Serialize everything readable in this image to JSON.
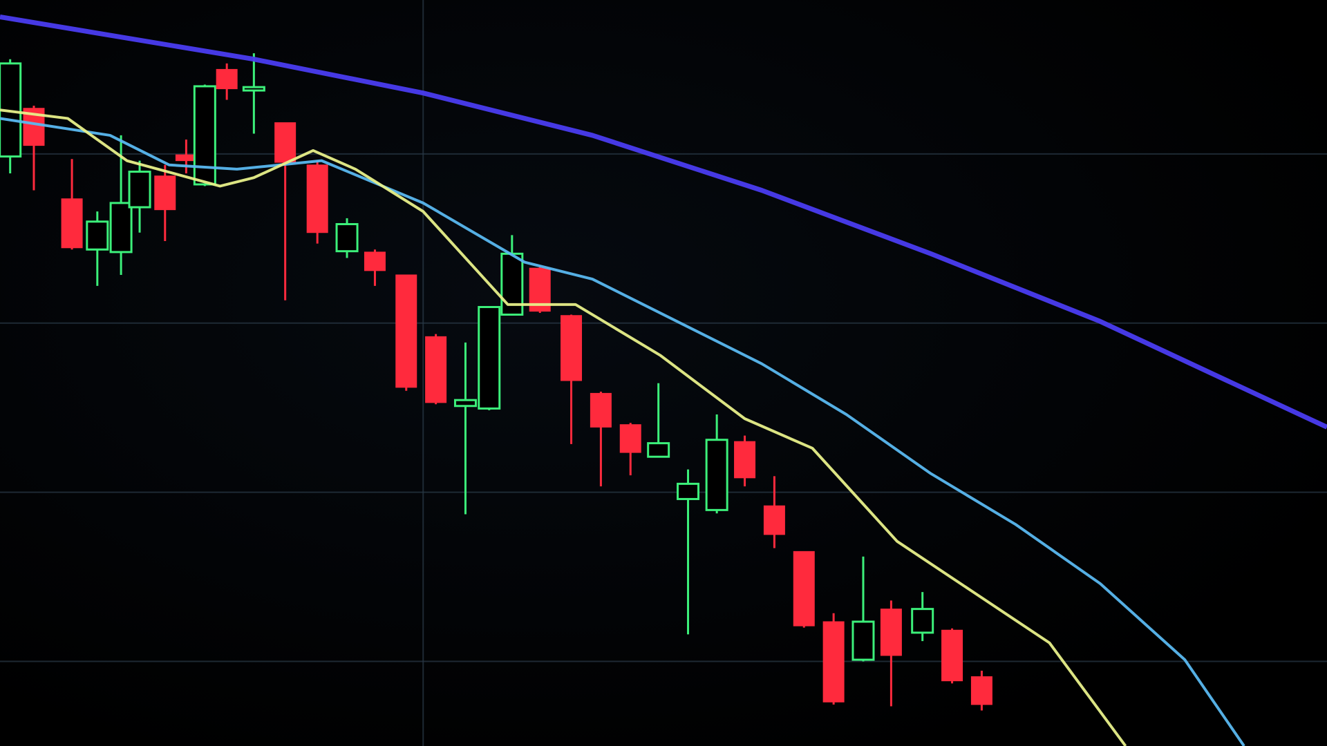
{
  "chart_data": {
    "type": "candlestick",
    "xlim": [
      0,
      1568
    ],
    "ylim": [
      0,
      882
    ],
    "xticks": [
      500
    ],
    "yticks": [
      100,
      300,
      500,
      700
    ],
    "grid": true,
    "color_up": "#3cf07a",
    "color_down": "#ff2a3d",
    "x": [
      12,
      40,
      85,
      115,
      143,
      165,
      195,
      220,
      242,
      268,
      300,
      337,
      375,
      410,
      443,
      480,
      515,
      550,
      578,
      605,
      638,
      675,
      710,
      745,
      778,
      813,
      847,
      880,
      915,
      950,
      985,
      1020,
      1053,
      1090,
      1125,
      1160
    ],
    "open": [
      697,
      754,
      647,
      587,
      584,
      637,
      674,
      699,
      664,
      800,
      775,
      737,
      687,
      585,
      584,
      557,
      484,
      402,
      399,
      510,
      565,
      509,
      417,
      380,
      342,
      292,
      279,
      360,
      284,
      230,
      147,
      102,
      162,
      134,
      137,
      82
    ],
    "high": [
      812,
      757,
      694,
      632,
      722,
      692,
      687,
      717,
      782,
      807,
      819,
      737,
      692,
      624,
      587,
      557,
      487,
      477,
      520,
      604,
      567,
      510,
      419,
      382,
      429,
      327,
      392,
      367,
      319,
      230,
      157,
      224,
      172,
      182,
      139,
      89
    ],
    "low": [
      677,
      657,
      587,
      544,
      557,
      607,
      597,
      677,
      662,
      764,
      724,
      527,
      594,
      577,
      544,
      420,
      404,
      274,
      397,
      509,
      512,
      357,
      307,
      320,
      342,
      132,
      275,
      307,
      234,
      140,
      49,
      100,
      47,
      124,
      74,
      42
    ],
    "close": [
      807,
      710,
      589,
      620,
      642,
      679,
      634,
      692,
      780,
      777,
      779,
      690,
      607,
      617,
      562,
      424,
      406,
      409,
      519,
      582,
      514,
      432,
      377,
      347,
      358,
      310,
      362,
      317,
      250,
      142,
      52,
      147,
      107,
      162,
      77,
      49
    ],
    "series": [
      {
        "color": "#4a3cf0",
        "x": [
          0,
          300,
          500,
          700,
          900,
          1100,
          1300,
          1450,
          1568
        ],
        "values": [
          862,
          812,
          772,
          722,
          657,
          582,
          502,
          432,
          377
        ]
      },
      {
        "color": "#5ab8f0",
        "x": [
          0,
          130,
          200,
          280,
          380,
          500,
          620,
          700,
          800,
          900,
          1000,
          1100,
          1200,
          1300,
          1400,
          1470
        ],
        "values": [
          742,
          722,
          687,
          682,
          692,
          642,
          572,
          552,
          502,
          452,
          392,
          322,
          262,
          192,
          102,
          0
        ]
      },
      {
        "color": "#e8f08a",
        "x": [
          0,
          80,
          150,
          260,
          300,
          370,
          420,
          500,
          600,
          680,
          780,
          880,
          960,
          1060,
          1150,
          1240,
          1330
        ],
        "values": [
          752,
          742,
          692,
          662,
          672,
          704,
          682,
          632,
          522,
          522,
          462,
          387,
          352,
          242,
          182,
          122,
          0
        ]
      }
    ]
  }
}
